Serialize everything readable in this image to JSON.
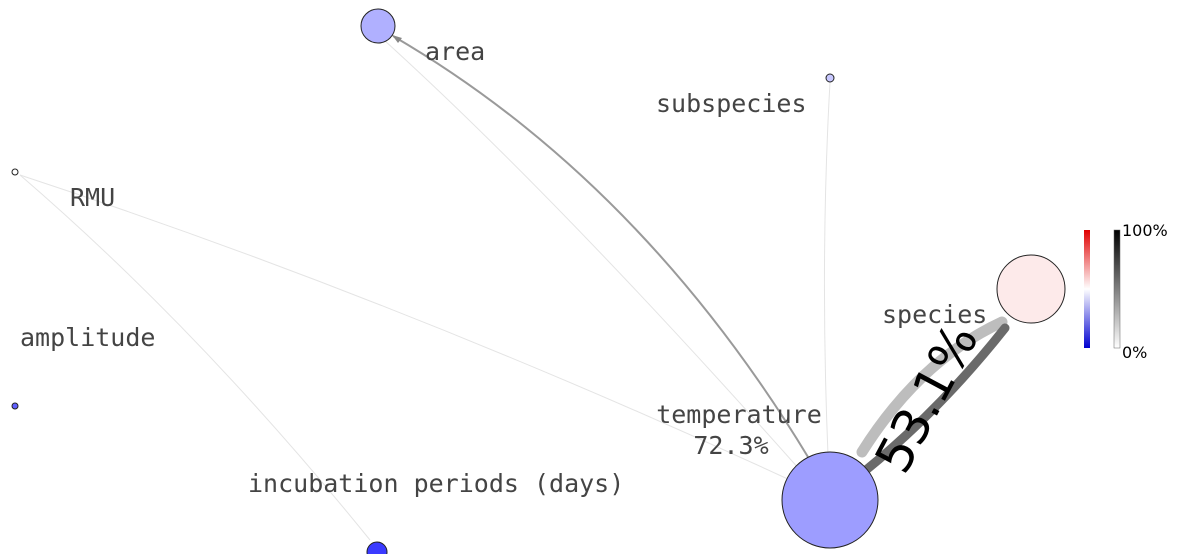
{
  "nodes": [
    {
      "label": "area"
    },
    {
      "label": "subspecies"
    },
    {
      "label": "RMU"
    },
    {
      "label": "amplitude"
    },
    {
      "label": "incubation periods (days)"
    },
    {
      "label": "temperature",
      "value": "72.3%"
    },
    {
      "label": "species"
    }
  ],
  "edges": [
    {
      "label": "53.1%"
    }
  ],
  "colorbar": {
    "max_label": "100%",
    "min_label": "0%"
  }
}
